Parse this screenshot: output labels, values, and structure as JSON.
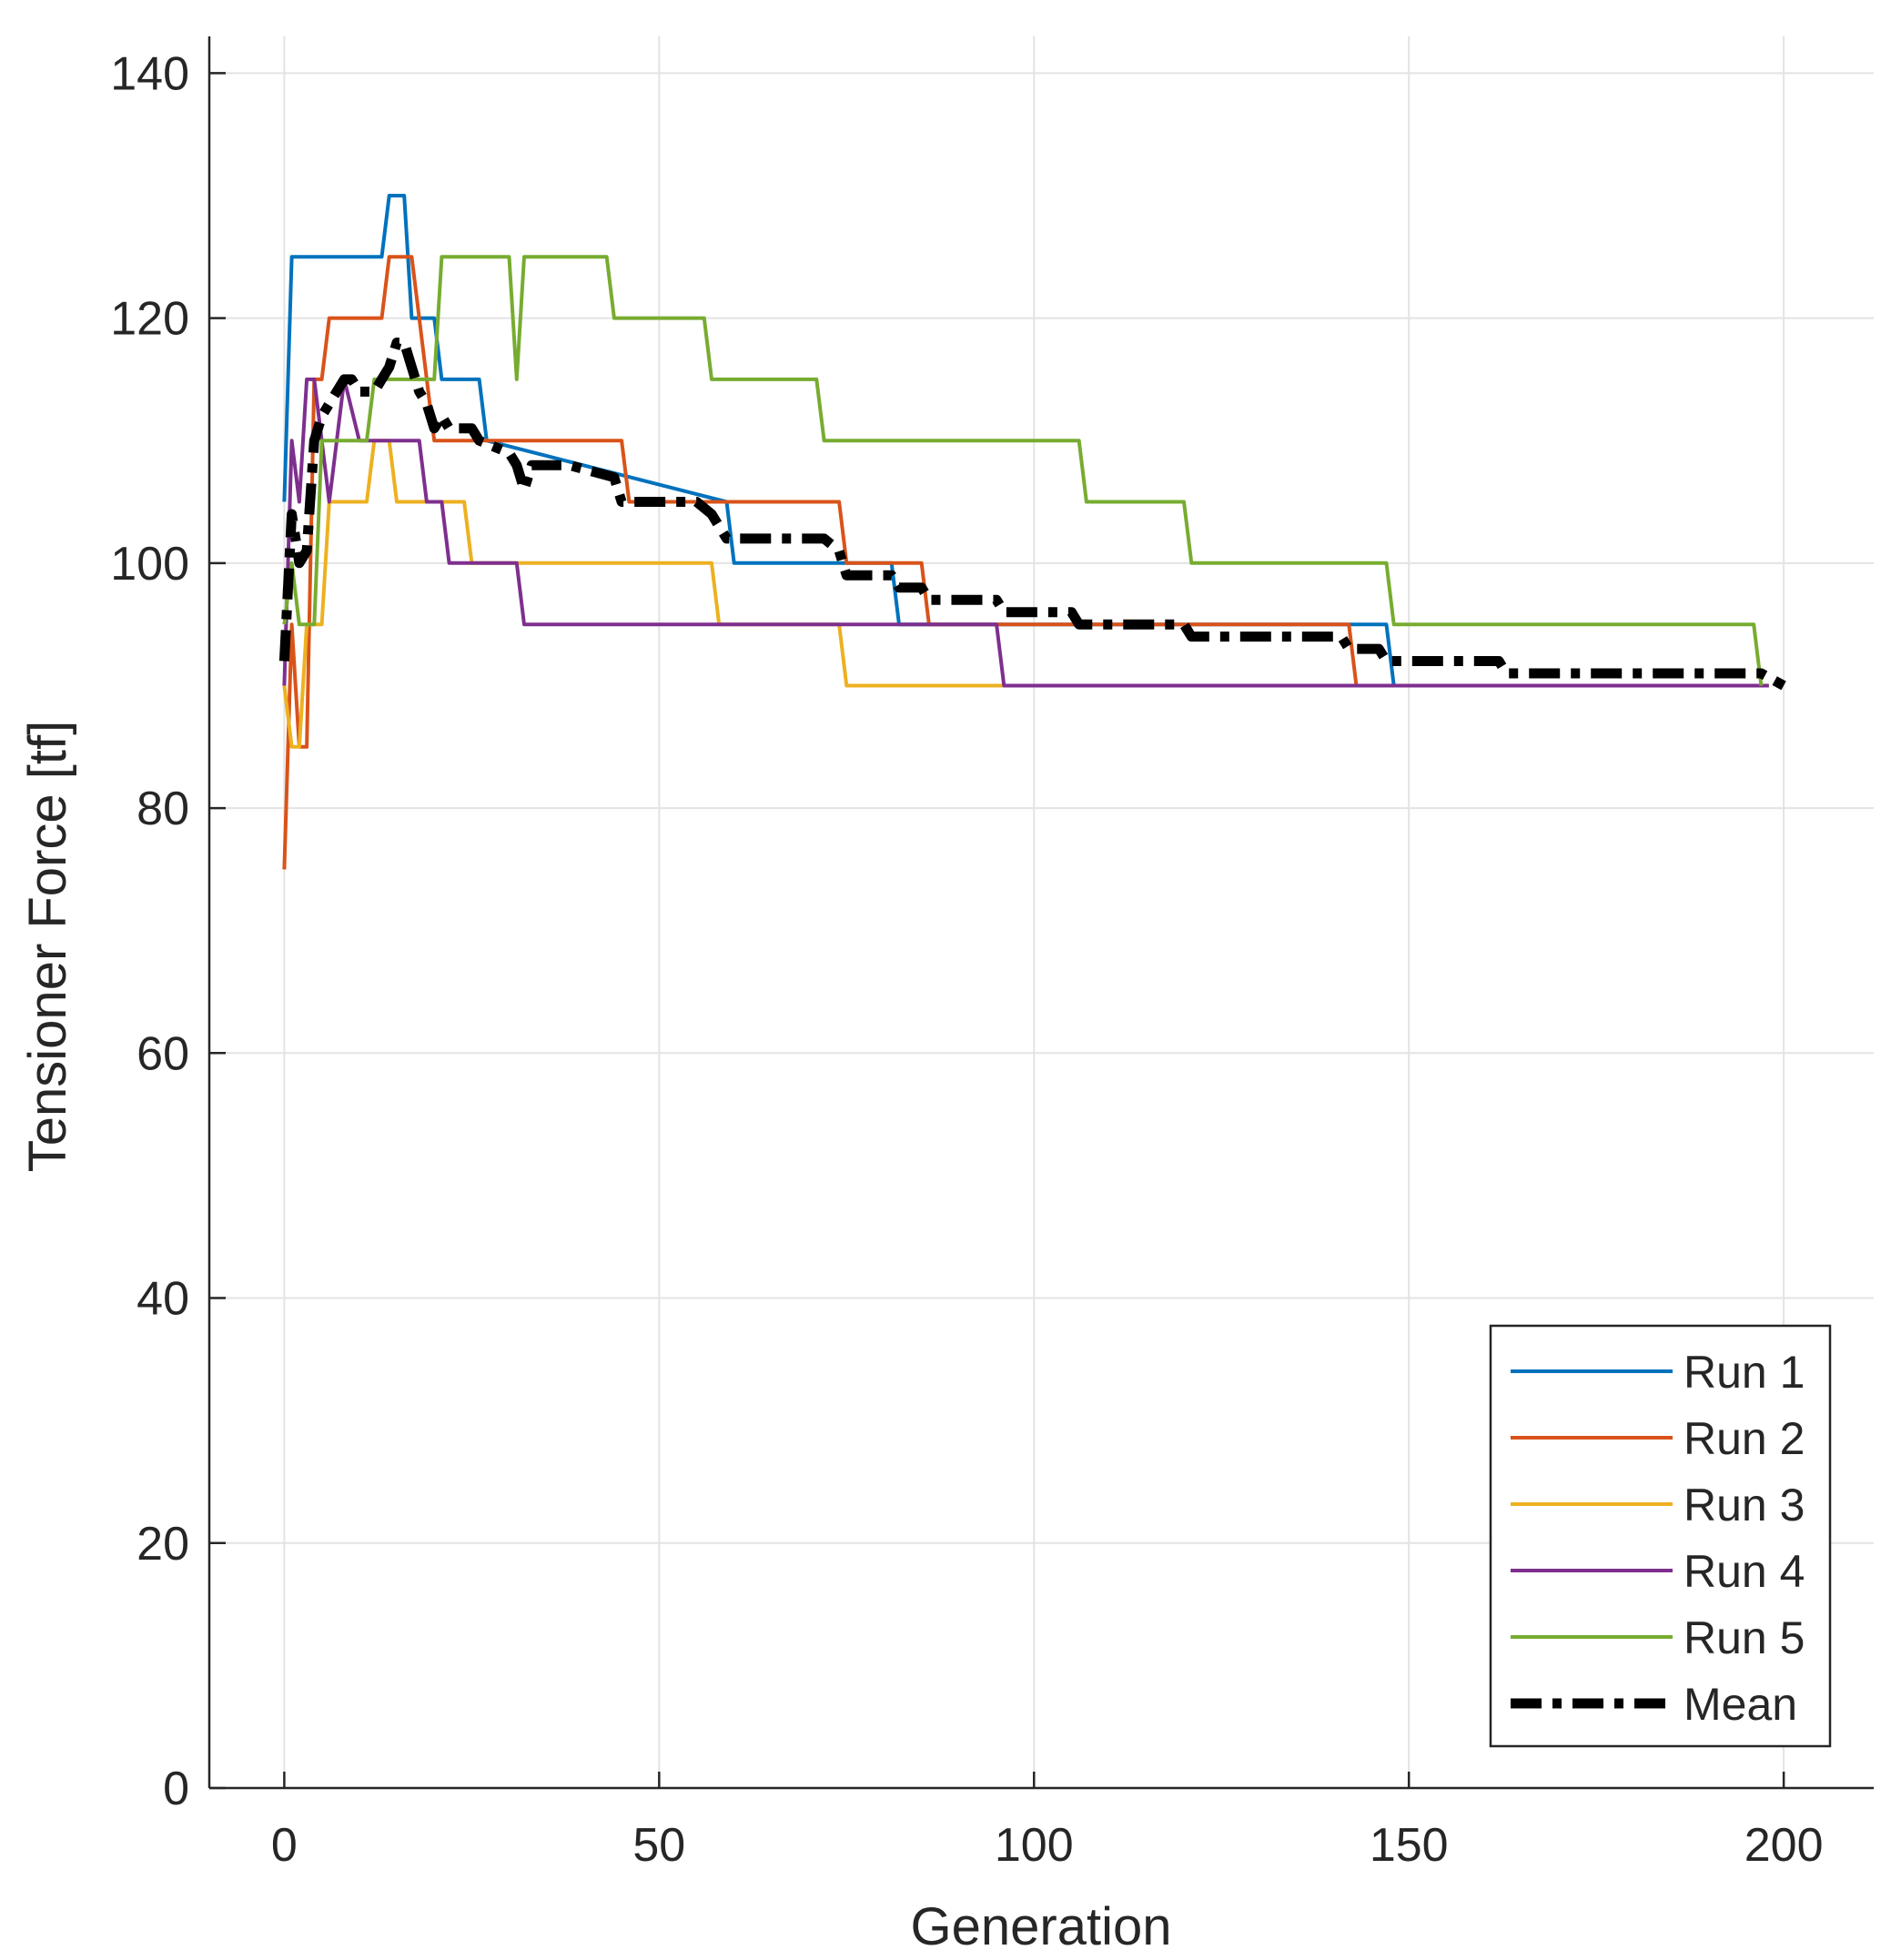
{
  "chart_data": {
    "type": "line",
    "title": "",
    "xlabel": "Generation",
    "ylabel": "Tensioner Force [tf]",
    "xlim": [
      -10,
      212
    ],
    "ylim": [
      0,
      143
    ],
    "xticks": [
      0,
      50,
      100,
      150,
      200
    ],
    "yticks": [
      0,
      20,
      40,
      60,
      80,
      100,
      120,
      140
    ],
    "xtick_labels": [
      "0",
      "50",
      "100",
      "150",
      "200"
    ],
    "ytick_labels": [
      "0",
      "20",
      "40",
      "60",
      "80",
      "100",
      "120",
      "140"
    ],
    "grid": true,
    "legend_position": "bottom-right",
    "series": [
      {
        "name": "Run 1",
        "color": "#0072BD",
        "style": "solid",
        "x": [
          0,
          1,
          13,
          14,
          16,
          17,
          20,
          21,
          22,
          26,
          27,
          59,
          60,
          74,
          75,
          81,
          82,
          147,
          148,
          162,
          163,
          197,
          198
        ],
        "y": [
          105,
          125,
          125,
          130,
          130,
          120,
          120,
          115,
          115,
          115,
          110,
          105,
          100,
          100,
          100,
          100,
          95,
          95,
          90,
          90,
          90,
          90,
          90
        ]
      },
      {
        "name": "Run 2",
        "color": "#D95319",
        "style": "solid",
        "x": [
          0,
          1,
          2,
          3,
          4,
          5,
          6,
          13,
          14,
          17,
          18,
          20,
          45,
          46,
          74,
          75,
          85,
          86,
          142,
          143,
          198
        ],
        "y": [
          75,
          95,
          85,
          85,
          115,
          115,
          120,
          120,
          125,
          125,
          120,
          110,
          110,
          105,
          105,
          100,
          100,
          95,
          95,
          90,
          90
        ]
      },
      {
        "name": "Run 3",
        "color": "#EDB120",
        "style": "solid",
        "x": [
          0,
          1,
          2,
          3,
          4,
          5,
          6,
          11,
          12,
          14,
          15,
          16,
          24,
          25,
          57,
          58,
          74,
          75,
          96,
          97,
          198
        ],
        "y": [
          90,
          85,
          85,
          95,
          95,
          95,
          105,
          105,
          110,
          110,
          105,
          105,
          105,
          100,
          100,
          95,
          95,
          90,
          90,
          90,
          90
        ]
      },
      {
        "name": "Run 4",
        "color": "#7E2F8E",
        "style": "solid",
        "x": [
          0,
          1,
          2,
          3,
          4,
          5,
          6,
          8,
          10,
          11,
          12,
          18,
          19,
          21,
          22,
          31,
          32,
          95,
          96,
          198
        ],
        "y": [
          90,
          110,
          105,
          115,
          115,
          110,
          105,
          115,
          110,
          110,
          110,
          110,
          105,
          105,
          100,
          100,
          95,
          95,
          90,
          90
        ]
      },
      {
        "name": "Run 5",
        "color": "#77AC30",
        "style": "solid",
        "x": [
          0,
          1,
          2,
          4,
          5,
          11,
          12,
          18,
          19,
          20,
          21,
          30,
          31,
          32,
          43,
          44,
          56,
          57,
          71,
          72,
          106,
          107,
          120,
          121,
          147,
          148,
          196,
          197
        ],
        "y": [
          95,
          100,
          95,
          95,
          110,
          110,
          115,
          115,
          115,
          115,
          125,
          125,
          115,
          125,
          125,
          120,
          120,
          115,
          115,
          110,
          110,
          105,
          105,
          100,
          100,
          95,
          95,
          90
        ]
      },
      {
        "name": "Mean",
        "color": "#000000",
        "style": "dashdot",
        "x": [
          0,
          1,
          2,
          3,
          4,
          5,
          6,
          8,
          9,
          10,
          11,
          12,
          13,
          14,
          15,
          16,
          17,
          18,
          19,
          20,
          21,
          22,
          25,
          26,
          30,
          31,
          32,
          33,
          38,
          44,
          45,
          46,
          55,
          57,
          58,
          59,
          72,
          74,
          75,
          76,
          81,
          82,
          85,
          86,
          95,
          96,
          105,
          106,
          107,
          119,
          120,
          121,
          141,
          142,
          143,
          146,
          147,
          148,
          161,
          162,
          163,
          196,
          197,
          200
        ],
        "y": [
          92,
          104,
          100,
          101,
          110,
          112,
          113,
          115,
          115,
          114,
          114,
          114,
          115,
          116,
          118,
          118,
          116,
          114,
          113,
          111,
          112,
          111,
          111,
          110,
          109,
          108,
          106,
          108,
          108,
          107,
          105,
          105,
          105,
          104,
          103,
          102,
          102,
          101,
          99,
          99,
          99,
          98,
          98,
          97,
          97,
          96,
          96,
          95,
          95,
          95,
          95,
          94,
          94,
          93,
          93,
          93,
          92,
          92,
          92,
          92,
          91,
          91,
          91,
          90
        ]
      }
    ]
  }
}
